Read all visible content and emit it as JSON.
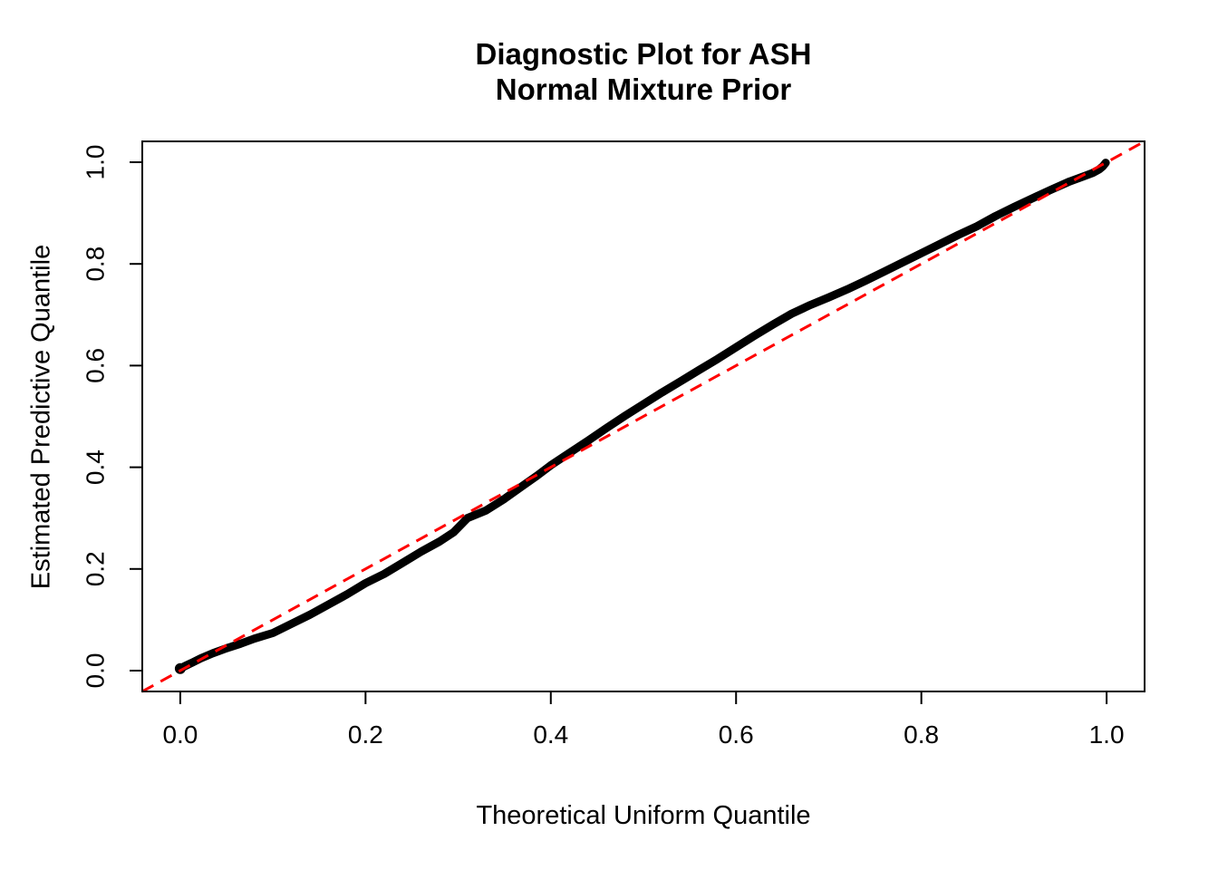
{
  "figure": {
    "title_lines": [
      "Diagnostic Plot for ASH",
      "Normal Mixture Prior"
    ]
  },
  "chart_data": {
    "type": "scatter",
    "title": "Diagnostic Plot for ASH\nNormal Mixture Prior",
    "xlabel": "Theoretical Uniform Quantile",
    "ylabel": "Estimated Predictive Quantile",
    "xlim": [
      -0.041,
      1.041
    ],
    "ylim": [
      -0.041,
      1.041
    ],
    "x_ticks": [
      0.0,
      0.2,
      0.4,
      0.6,
      0.8,
      1.0
    ],
    "y_ticks": [
      0.0,
      0.2,
      0.4,
      0.6,
      0.8,
      1.0
    ],
    "x_tick_labels": [
      "0.0",
      "0.2",
      "0.4",
      "0.6",
      "0.8",
      "1.0"
    ],
    "y_tick_labels": [
      "0.0",
      "0.2",
      "0.4",
      "0.6",
      "0.8",
      "1.0"
    ],
    "grid": false,
    "legend": "none",
    "colors": {
      "curve": "#000000",
      "reference": "#FF0000",
      "frame": "#000000"
    },
    "series": [
      {
        "name": "empirical-predictive-quantiles",
        "style": "thick-solid",
        "color": "#000000",
        "points": [
          [
            0.0,
            0.004
          ],
          [
            0.005,
            0.009
          ],
          [
            0.012,
            0.015
          ],
          [
            0.022,
            0.024
          ],
          [
            0.035,
            0.034
          ],
          [
            0.05,
            0.044
          ],
          [
            0.065,
            0.053
          ],
          [
            0.08,
            0.063
          ],
          [
            0.1,
            0.074
          ],
          [
            0.12,
            0.092
          ],
          [
            0.14,
            0.11
          ],
          [
            0.16,
            0.13
          ],
          [
            0.18,
            0.15
          ],
          [
            0.2,
            0.172
          ],
          [
            0.22,
            0.19
          ],
          [
            0.24,
            0.212
          ],
          [
            0.26,
            0.234
          ],
          [
            0.28,
            0.254
          ],
          [
            0.295,
            0.272
          ],
          [
            0.31,
            0.3
          ],
          [
            0.33,
            0.315
          ],
          [
            0.35,
            0.338
          ],
          [
            0.37,
            0.364
          ],
          [
            0.385,
            0.383
          ],
          [
            0.4,
            0.404
          ],
          [
            0.42,
            0.428
          ],
          [
            0.44,
            0.452
          ],
          [
            0.46,
            0.477
          ],
          [
            0.48,
            0.501
          ],
          [
            0.5,
            0.524
          ],
          [
            0.52,
            0.547
          ],
          [
            0.54,
            0.569
          ],
          [
            0.56,
            0.591
          ],
          [
            0.58,
            0.613
          ],
          [
            0.6,
            0.636
          ],
          [
            0.62,
            0.659
          ],
          [
            0.64,
            0.681
          ],
          [
            0.66,
            0.702
          ],
          [
            0.68,
            0.719
          ],
          [
            0.7,
            0.734
          ],
          [
            0.72,
            0.75
          ],
          [
            0.74,
            0.767
          ],
          [
            0.76,
            0.785
          ],
          [
            0.78,
            0.803
          ],
          [
            0.8,
            0.821
          ],
          [
            0.82,
            0.839
          ],
          [
            0.84,
            0.857
          ],
          [
            0.86,
            0.874
          ],
          [
            0.88,
            0.894
          ],
          [
            0.9,
            0.912
          ],
          [
            0.92,
            0.929
          ],
          [
            0.94,
            0.946
          ],
          [
            0.96,
            0.962
          ],
          [
            0.975,
            0.972
          ],
          [
            0.985,
            0.979
          ],
          [
            0.992,
            0.986
          ],
          [
            0.996,
            0.992
          ],
          [
            0.999,
            0.999
          ]
        ]
      },
      {
        "name": "reference-diagonal",
        "style": "dashed",
        "color": "#FF0000",
        "points": [
          [
            -0.041,
            -0.041
          ],
          [
            1.041,
            1.041
          ]
        ]
      }
    ]
  }
}
